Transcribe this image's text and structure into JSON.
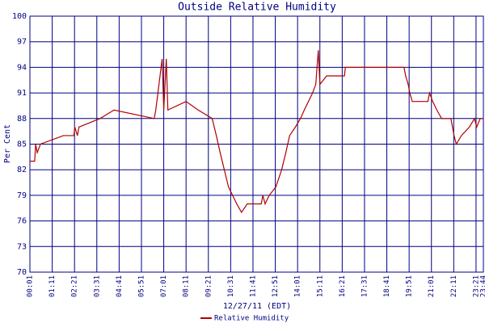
{
  "chart_data": {
    "type": "line",
    "title": "Outside Relative Humidity",
    "xlabel": "12/27/11 (EDT)",
    "ylabel": "Per Cent",
    "grid": true,
    "grid_color": "#000080",
    "legend": "bottom",
    "xlim": [
      1,
      1424
    ],
    "ylim": [
      70,
      100
    ],
    "yticks": [
      70,
      73,
      76,
      79,
      82,
      85,
      88,
      91,
      94,
      97,
      100
    ],
    "xticks": [
      {
        "value": 1,
        "label": "00:01"
      },
      {
        "value": 71,
        "label": "01:11"
      },
      {
        "value": 141,
        "label": "02:21"
      },
      {
        "value": 211,
        "label": "03:31"
      },
      {
        "value": 281,
        "label": "04:41"
      },
      {
        "value": 351,
        "label": "05:51"
      },
      {
        "value": 421,
        "label": "07:01"
      },
      {
        "value": 491,
        "label": "08:11"
      },
      {
        "value": 561,
        "label": "09:21"
      },
      {
        "value": 631,
        "label": "10:31"
      },
      {
        "value": 701,
        "label": "11:41"
      },
      {
        "value": 771,
        "label": "12:51"
      },
      {
        "value": 841,
        "label": "14:01"
      },
      {
        "value": 911,
        "label": "15:11"
      },
      {
        "value": 981,
        "label": "16:21"
      },
      {
        "value": 1051,
        "label": "17:31"
      },
      {
        "value": 1121,
        "label": "18:41"
      },
      {
        "value": 1191,
        "label": "19:51"
      },
      {
        "value": 1261,
        "label": "21:01"
      },
      {
        "value": 1331,
        "label": "22:11"
      },
      {
        "value": 1401,
        "label": "23:21"
      },
      {
        "value": 1424,
        "label": "23:44"
      }
    ],
    "x": [
      1,
      16,
      19,
      24,
      34,
      106,
      139,
      142,
      150,
      155,
      221,
      265,
      391,
      396,
      416,
      421,
      429,
      434,
      491,
      529,
      573,
      586,
      598,
      611,
      624,
      637,
      650,
      665,
      683,
      727,
      732,
      739,
      752,
      773,
      791,
      804,
      816,
      834,
      850,
      862,
      875,
      888,
      898,
      906,
      911,
      932,
      988,
      991,
      1175,
      1180,
      1188,
      1193,
      1201,
      1250,
      1255,
      1265,
      1278,
      1293,
      1322,
      1332,
      1339,
      1355,
      1380,
      1396,
      1403,
      1414,
      1424
    ],
    "series": [
      {
        "name": "Relative Humidity",
        "color": "#b00000",
        "values": [
          83,
          83,
          85,
          84,
          85,
          86,
          86,
          87,
          86,
          87,
          88,
          89,
          88,
          89,
          95,
          89,
          95,
          89,
          90,
          89,
          88,
          86,
          84,
          82,
          80,
          79,
          78,
          77,
          78,
          78,
          79,
          78,
          79,
          80,
          82,
          84,
          86,
          87,
          88,
          89,
          90,
          91,
          92,
          96,
          92,
          93,
          93,
          94,
          94,
          93,
          92,
          91,
          90,
          90,
          91,
          90,
          89,
          88,
          88,
          86,
          85,
          86,
          87,
          88,
          87,
          88,
          88
        ]
      }
    ]
  }
}
